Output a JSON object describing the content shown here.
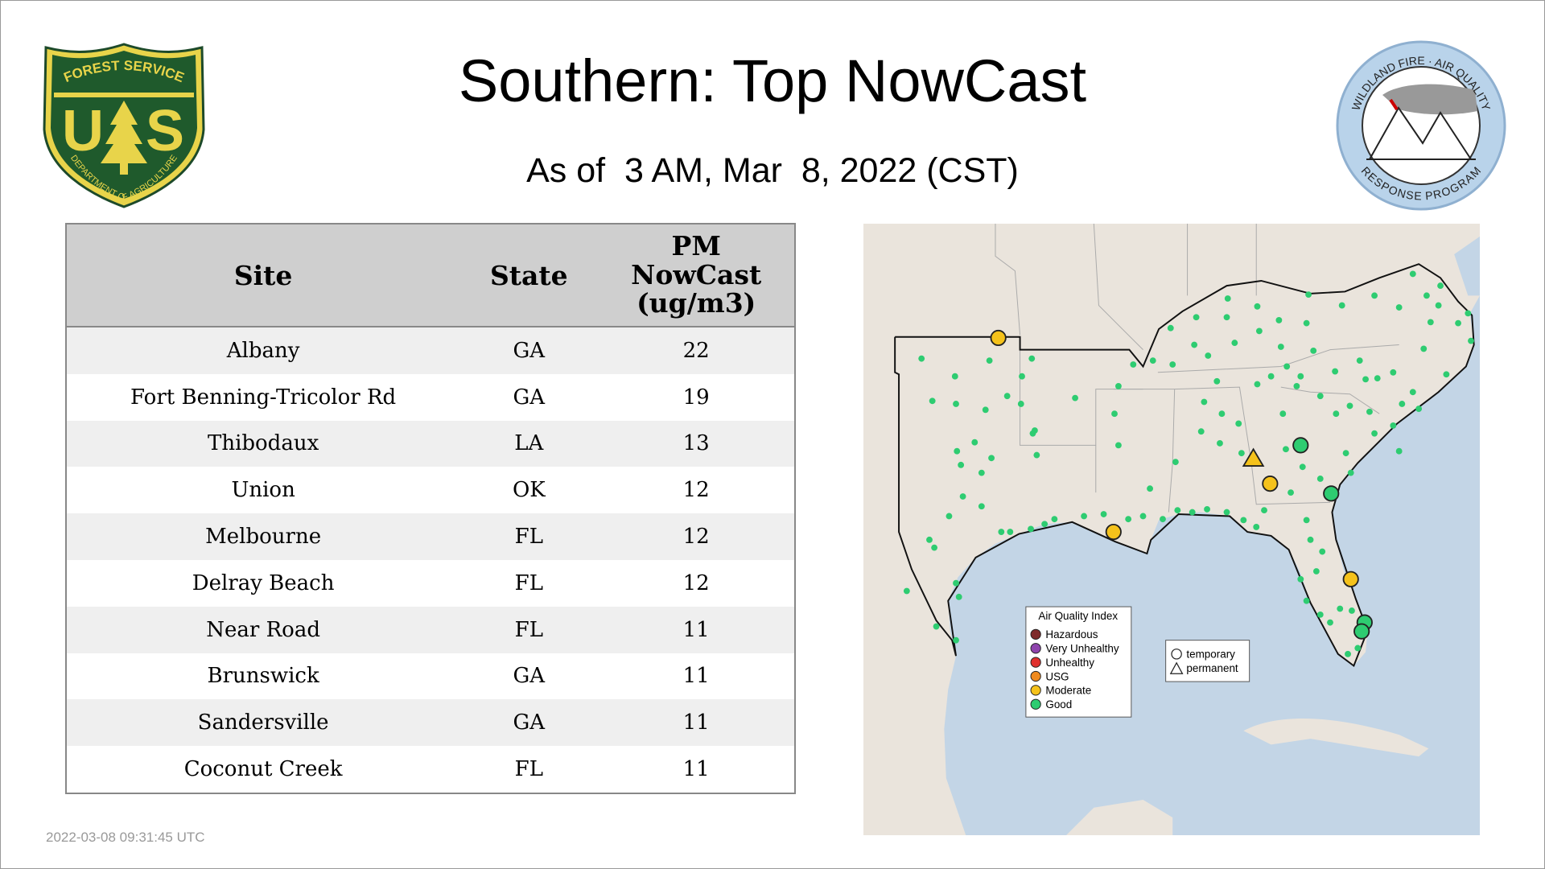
{
  "logos": {
    "forest_service": {
      "top": "FOREST SERVICE",
      "letters": [
        "U",
        "S"
      ],
      "bottom": "DEPARTMENT OF AGRICULTURE"
    },
    "wildland": {
      "top": "WILDLAND FIRE · AIR QUALITY",
      "bottom": "RESPONSE PROGRAM"
    }
  },
  "header": {
    "title": "Southern: Top NowCast",
    "subtitle": "As of  3 AM, Mar  8, 2022 (CST)"
  },
  "table": {
    "columns": [
      "Site",
      "State",
      "PM NowCast (ug/m3)"
    ],
    "rows": [
      [
        "Albany",
        "GA",
        22
      ],
      [
        "Fort Benning-Tricolor Rd",
        "GA",
        19
      ],
      [
        "Thibodaux",
        "LA",
        13
      ],
      [
        "Union",
        "OK",
        12
      ],
      [
        "Melbourne",
        "FL",
        12
      ],
      [
        "Delray Beach",
        "FL",
        12
      ],
      [
        "Near Road",
        "FL",
        11
      ],
      [
        "Brunswick",
        "GA",
        11
      ],
      [
        "Sandersville",
        "GA",
        11
      ],
      [
        "Coconut Creek",
        "FL",
        11
      ]
    ]
  },
  "map": {
    "legend": {
      "title": "Air Quality Index",
      "items": [
        {
          "label": "Hazardous",
          "color": "#7e2a2a"
        },
        {
          "label": "Very Unhealthy",
          "color": "#8e44ad"
        },
        {
          "label": "Unhealthy",
          "color": "#e0312e"
        },
        {
          "label": "USG",
          "color": "#ef8a1f"
        },
        {
          "label": "Moderate",
          "color": "#f5c21b"
        },
        {
          "label": "Good",
          "color": "#2ecc71"
        }
      ]
    },
    "shape_legend": [
      "temporary",
      "permanent"
    ]
  },
  "timestamp": "2022-03-08 09:31:45 UTC"
}
